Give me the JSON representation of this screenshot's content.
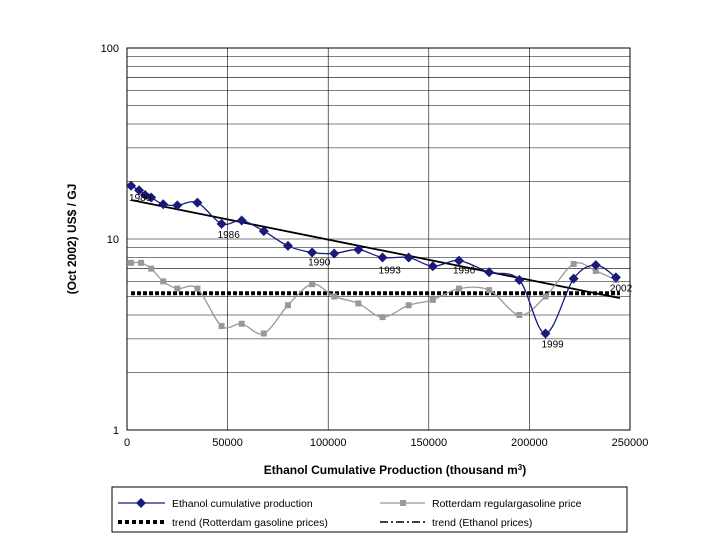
{
  "chart_data": {
    "type": "line",
    "title": "",
    "xlabel": "Ethanol Cumulative Production (thousand m",
    "xlabel_sup": "3",
    "xlabel_suffix": ")",
    "ylabel": "(Oct 2002) US$ / GJ",
    "xlim": [
      0,
      250000
    ],
    "ylim": [
      1,
      100
    ],
    "yscale": "log",
    "x_ticks": [
      "0",
      "50000",
      "100000",
      "150000",
      "200000",
      "250000"
    ],
    "y_ticks": [
      "1",
      "10",
      "100"
    ],
    "grid": "horizontal log grid + vertical grid at x ticks",
    "series": [
      {
        "name": "Ethanol cumulative production",
        "color": "#1a1a7a",
        "marker": "diamond",
        "x": [
          2000,
          6000,
          9000,
          12000,
          18000,
          25000,
          35000,
          47000,
          57000,
          68000,
          80000,
          92000,
          103000,
          115000,
          127000,
          140000,
          152000,
          165000,
          180000,
          195000,
          208000,
          222000,
          233000,
          243000
        ],
        "y": [
          19,
          18,
          17,
          16.5,
          15.2,
          15,
          15.5,
          12,
          12.5,
          11,
          9.2,
          8.5,
          8.4,
          8.8,
          8,
          8,
          7.2,
          7.7,
          6.7,
          6.1,
          3.2,
          6.2,
          7.3,
          6.3
        ]
      },
      {
        "name": "Rotterdam regulargasoline price",
        "color": "#999999",
        "marker": "square",
        "x": [
          2000,
          7000,
          12000,
          18000,
          25000,
          35000,
          47000,
          57000,
          68000,
          80000,
          92000,
          103000,
          115000,
          127000,
          140000,
          152000,
          165000,
          180000,
          195000,
          208000,
          222000,
          233000,
          243000
        ],
        "y": [
          7.5,
          7.5,
          7,
          6,
          5.5,
          5.5,
          3.5,
          3.6,
          3.2,
          4.5,
          5.8,
          5,
          4.6,
          3.9,
          4.5,
          4.8,
          5.5,
          5.4,
          4,
          5,
          7.4,
          6.8,
          6.1
        ]
      },
      {
        "name": "trend (Rotterdam gasoline prices)",
        "color": "#000000",
        "style": "dotted",
        "x": [
          2000,
          245000
        ],
        "y": [
          5.2,
          5.2
        ]
      },
      {
        "name": "trend (Ethanol prices)",
        "color": "#000000",
        "style": "dash-dot",
        "x": [
          2000,
          245000
        ],
        "y": [
          16,
          4.9
        ]
      }
    ],
    "annotations": [
      {
        "text": "1980",
        "x": 2000,
        "y": 19
      },
      {
        "text": "1986",
        "x": 47000,
        "y": 12
      },
      {
        "text": "1990",
        "x": 92000,
        "y": 8.5
      },
      {
        "text": "1993",
        "x": 127000,
        "y": 8
      },
      {
        "text": "1996",
        "x": 165000,
        "y": 7.7
      },
      {
        "text": "1999",
        "x": 208000,
        "y": 3.2
      },
      {
        "text": "2002",
        "x": 243000,
        "y": 6.3
      }
    ]
  }
}
